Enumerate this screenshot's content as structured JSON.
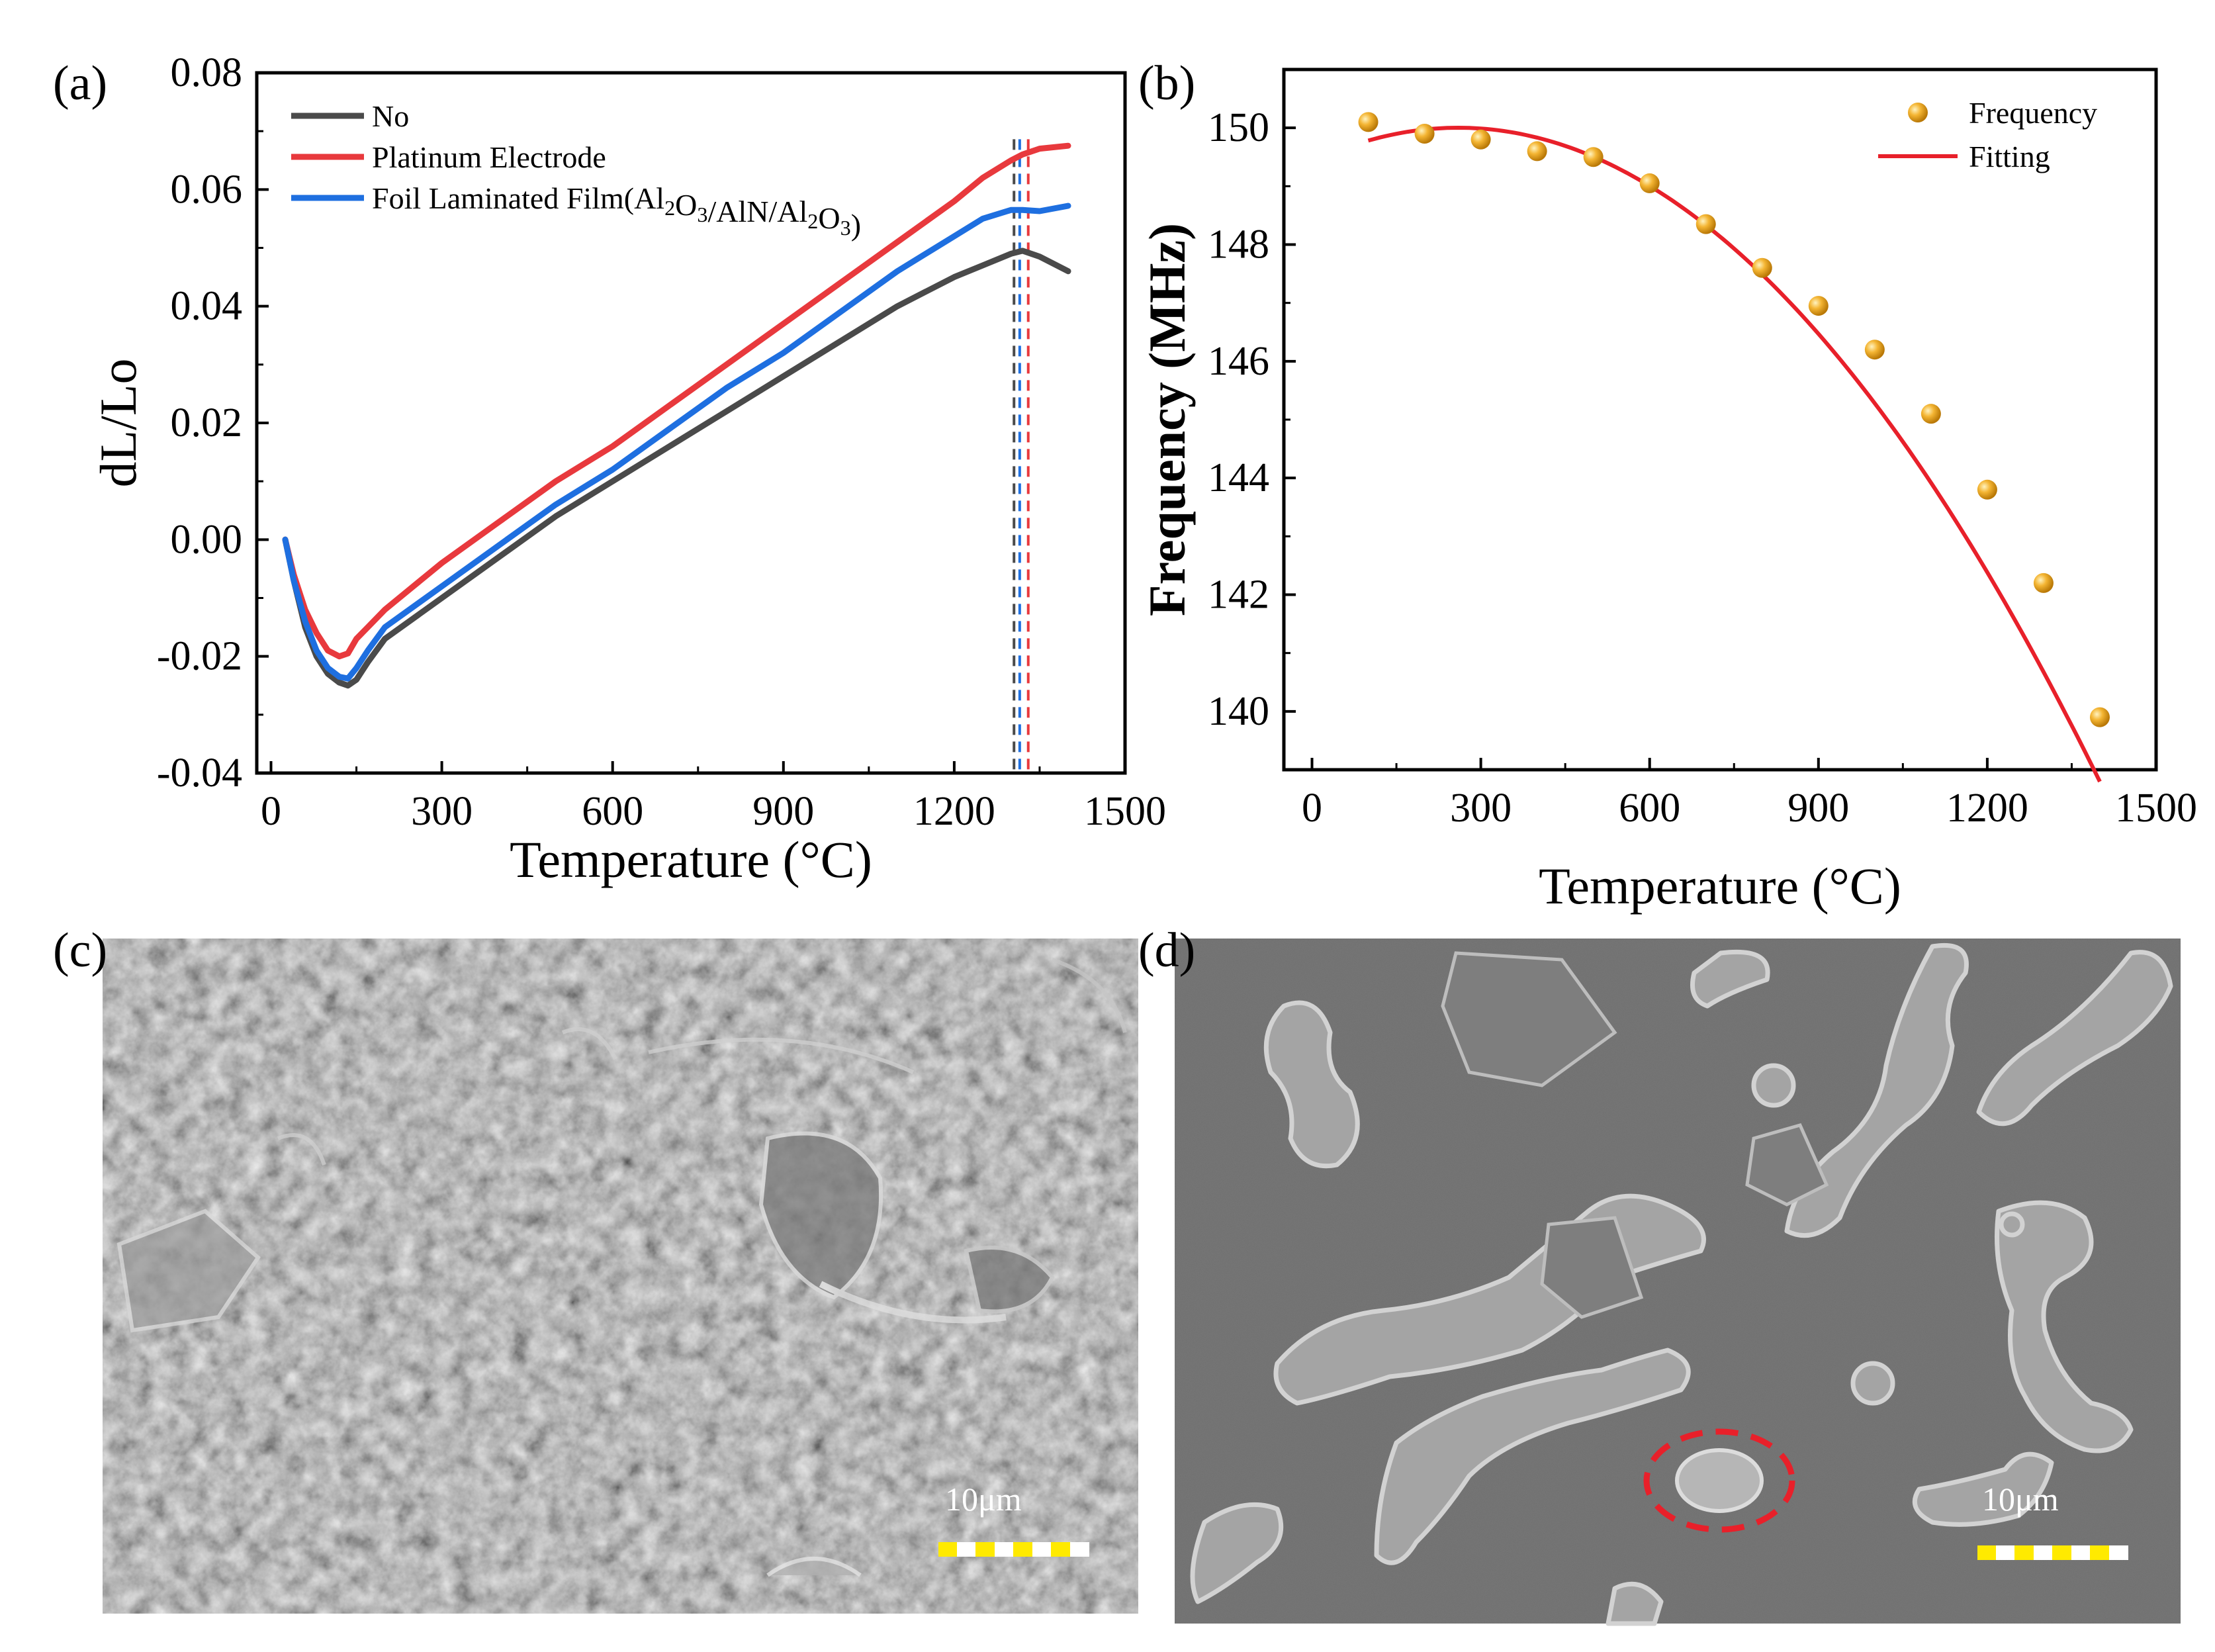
{
  "panel_labels": {
    "a": "(a)",
    "b": "(b)",
    "c": "(c)",
    "d": "(d)"
  },
  "chart_data": [
    {
      "type": "line",
      "panel": "(a)",
      "title": "",
      "xlabel": "Temperature (°C)",
      "ylabel": "dL/Lo",
      "xlim": [
        -25,
        1500
      ],
      "ylim": [
        -0.04,
        0.08
      ],
      "xticks": [
        "0",
        "300",
        "600",
        "900",
        "1200",
        "1500"
      ],
      "yticks": [
        "-0.04",
        "-0.02",
        "0.00",
        "0.02",
        "0.04",
        "0.06",
        "0.08"
      ],
      "legend_position": "top-left",
      "series": [
        {
          "name": "No",
          "color": "#4a4a4a",
          "x": [
            25,
            40,
            60,
            80,
            100,
            120,
            135,
            150,
            170,
            200,
            300,
            400,
            500,
            600,
            700,
            800,
            900,
            1000,
            1100,
            1200,
            1250,
            1300,
            1320,
            1350,
            1400
          ],
          "y": [
            0.0,
            -0.007,
            -0.015,
            -0.02,
            -0.023,
            -0.0245,
            -0.025,
            -0.024,
            -0.021,
            -0.017,
            -0.01,
            -0.003,
            0.004,
            0.01,
            0.016,
            0.022,
            0.028,
            0.034,
            0.04,
            0.045,
            0.047,
            0.049,
            0.0495,
            0.0485,
            0.046
          ]
        },
        {
          "name": "Platinum Electrode",
          "color": "#e8393d",
          "x": [
            25,
            40,
            60,
            80,
            100,
            120,
            135,
            150,
            170,
            200,
            300,
            400,
            500,
            600,
            700,
            800,
            900,
            1000,
            1100,
            1200,
            1250,
            1300,
            1320,
            1350,
            1400
          ],
          "y": [
            0.0,
            -0.006,
            -0.012,
            -0.016,
            -0.019,
            -0.02,
            -0.0195,
            -0.017,
            -0.015,
            -0.012,
            -0.004,
            0.003,
            0.01,
            0.016,
            0.023,
            0.03,
            0.037,
            0.044,
            0.051,
            0.058,
            0.062,
            0.065,
            0.066,
            0.067,
            0.0675
          ]
        },
        {
          "name": "Foil Laminated Film(Al2O3/AlN/Al2O3)",
          "color": "#1e6fe0",
          "x": [
            25,
            40,
            60,
            80,
            100,
            120,
            135,
            150,
            170,
            200,
            300,
            400,
            500,
            600,
            700,
            800,
            900,
            1000,
            1100,
            1200,
            1250,
            1300,
            1320,
            1350,
            1400
          ],
          "y": [
            0.0,
            -0.007,
            -0.014,
            -0.019,
            -0.022,
            -0.0235,
            -0.0238,
            -0.022,
            -0.019,
            -0.015,
            -0.008,
            -0.001,
            0.006,
            0.012,
            0.019,
            0.026,
            0.032,
            0.039,
            0.046,
            0.052,
            0.055,
            0.0565,
            0.0565,
            0.0563,
            0.0572
          ]
        }
      ],
      "vlines": [
        {
          "x": 1305,
          "color": "#4a4a4a"
        },
        {
          "x": 1315,
          "color": "#1e6fe0"
        },
        {
          "x": 1330,
          "color": "#e8393d"
        }
      ]
    },
    {
      "type": "scatter",
      "panel": "(b)",
      "title": "",
      "xlabel": "Temperature (°C)",
      "ylabel": "Frequency (MHz)",
      "xlim": [
        -50,
        1500
      ],
      "ylim": [
        139,
        151
      ],
      "xticks": [
        "0",
        "300",
        "600",
        "900",
        "1200",
        "1500"
      ],
      "yticks": [
        "140",
        "142",
        "144",
        "146",
        "148",
        "150"
      ],
      "legend_position": "top-right",
      "series": [
        {
          "name": "Frequency",
          "color": "#f0a820",
          "x": [
            100,
            200,
            300,
            400,
            500,
            600,
            700,
            800,
            900,
            1000,
            1100,
            1200,
            1300,
            1400
          ],
          "y": [
            150.1,
            149.9,
            149.8,
            149.6,
            149.5,
            149.05,
            148.35,
            147.6,
            146.95,
            146.2,
            145.1,
            143.8,
            142.2,
            139.9
          ]
        },
        {
          "name": "Fitting",
          "color": "#e8202a",
          "fit": {
            "a": -8.62e-06,
            "b": 0.00448,
            "c": 149.42,
            "x_start": 100,
            "x_end": 1400
          }
        }
      ]
    }
  ],
  "micrographs": {
    "c": {
      "scale_label": "10μm"
    },
    "d": {
      "scale_label": "10μm"
    }
  },
  "colors": {
    "no": "#4a4a4a",
    "platinum": "#e8393d",
    "film": "#1e6fe0",
    "frequency": "#f0a820",
    "fitting": "#e8202a",
    "highlight": "#e8202a",
    "scalebar_yellow": "#ffea00"
  }
}
